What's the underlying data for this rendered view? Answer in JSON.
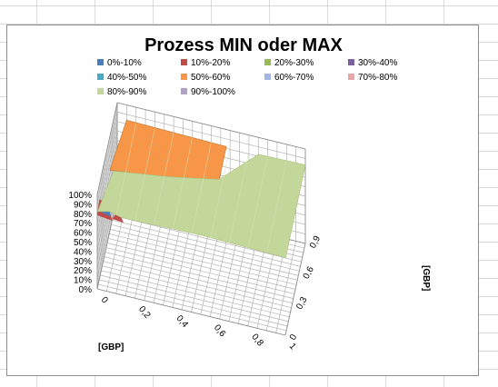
{
  "chart_data": {
    "type": "surface",
    "title": "Prozess MIN oder MAX",
    "legend": {
      "placement": "top",
      "entries": [
        {
          "label": "0%-10%",
          "color": "#4a7ebb"
        },
        {
          "label": "10%-20%",
          "color": "#be4b48"
        },
        {
          "label": "20%-30%",
          "color": "#98b954"
        },
        {
          "label": "30%-40%",
          "color": "#7d60a0"
        },
        {
          "label": "40%-50%",
          "color": "#46aac5"
        },
        {
          "label": "50%-60%",
          "color": "#f79646"
        },
        {
          "label": "60%-70%",
          "color": "#a3b6e5"
        },
        {
          "label": "70%-80%",
          "color": "#e5a8a7"
        },
        {
          "label": "80%-90%",
          "color": "#c4d79b"
        },
        {
          "label": "90%-100%",
          "color": "#b2a1c7"
        }
      ]
    },
    "z_axis": {
      "tick_labels": [
        "0%",
        "10%",
        "20%",
        "30%",
        "40%",
        "50%",
        "60%",
        "70%",
        "80%",
        "90%",
        "100%"
      ],
      "range": [
        0,
        1
      ]
    },
    "x_axis": {
      "label": "[GBP]",
      "tick_labels": [
        "0",
        "0,2",
        "0,4",
        "0,6",
        "0,8",
        "1"
      ],
      "range": [
        0,
        1
      ]
    },
    "y_axis": {
      "label": "[GBP]",
      "tick_labels": [
        "0",
        "0,3",
        "0,6",
        "0,9"
      ],
      "range": [
        0,
        1
      ]
    },
    "grid": true,
    "surface": {
      "approx_level_range": [
        0.7,
        0.9
      ],
      "dominant_band": "80%-90%",
      "secondary_bands": [
        "50%-60%",
        "70%-80%",
        "10%-20%",
        "0%-10%"
      ]
    }
  }
}
